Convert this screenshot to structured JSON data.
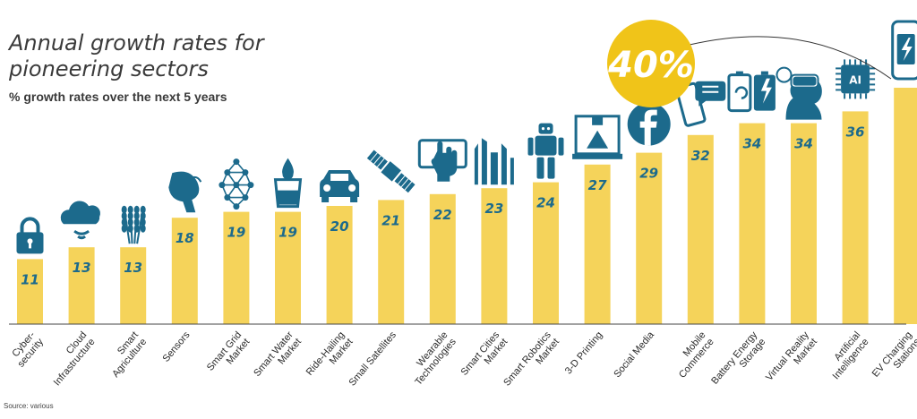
{
  "title": "Annual growth rates for pioneering sectors",
  "subtitle": "% growth rates over the next 5 years",
  "source": "Source: various",
  "highlight": "40%",
  "colors": {
    "bar": "#f5d35a",
    "accent": "#1c6a8c",
    "highlight": "#f0c419"
  },
  "chart_data": {
    "type": "bar",
    "categories": [
      {
        "l1": "Cyber-",
        "l2": "security",
        "icon": "padlock-icon"
      },
      {
        "l1": "Cloud",
        "l2": "Infrastructure",
        "icon": "cloud-icon"
      },
      {
        "l1": "Smart",
        "l2": "Agriculture",
        "icon": "wheat-icon"
      },
      {
        "l1": "Sensors",
        "l2": "",
        "icon": "sensor-hand-icon"
      },
      {
        "l1": "Smart Grid",
        "l2": "Market",
        "icon": "grid-network-icon"
      },
      {
        "l1": "Smart Water",
        "l2": "Market",
        "icon": "water-drop-icon"
      },
      {
        "l1": "Ride-Hailing",
        "l2": "Market",
        "icon": "car-icon"
      },
      {
        "l1": "Small Satellites",
        "l2": "",
        "icon": "satellite-icon"
      },
      {
        "l1": "Wearable",
        "l2": "Technologies",
        "icon": "tablet-hand-icon"
      },
      {
        "l1": "Smart Cities",
        "l2": "Market",
        "icon": "city-icon"
      },
      {
        "l1": "Smart Robotics",
        "l2": "Market",
        "icon": "robot-icon"
      },
      {
        "l1": "3-D Printing",
        "l2": "",
        "icon": "3d-printer-icon"
      },
      {
        "l1": "Social Media",
        "l2": "",
        "icon": "facebook-icon"
      },
      {
        "l1": "Mobile",
        "l2": "Commerce",
        "icon": "phone-chat-icon"
      },
      {
        "l1": "Battery Energy",
        "l2": "Storage",
        "icon": "battery-icon"
      },
      {
        "l1": "Virtual Reality",
        "l2": "Market",
        "icon": "vr-headset-icon"
      },
      {
        "l1": "Artificial",
        "l2": "Intelligence",
        "icon": "ai-chip-icon"
      },
      {
        "l1": "EV Charging",
        "l2": "Stations",
        "icon": "ev-charger-icon"
      }
    ],
    "values": [
      11,
      13,
      13,
      18,
      19,
      19,
      20,
      21,
      22,
      23,
      24,
      27,
      29,
      32,
      34,
      34,
      36,
      40
    ],
    "value_labels": [
      "11",
      "13",
      "13",
      "18",
      "19",
      "19",
      "20",
      "21",
      "22",
      "23",
      "24",
      "27",
      "29",
      "32",
      "34",
      "34",
      "36",
      ""
    ],
    "ylim": [
      0,
      40
    ]
  }
}
